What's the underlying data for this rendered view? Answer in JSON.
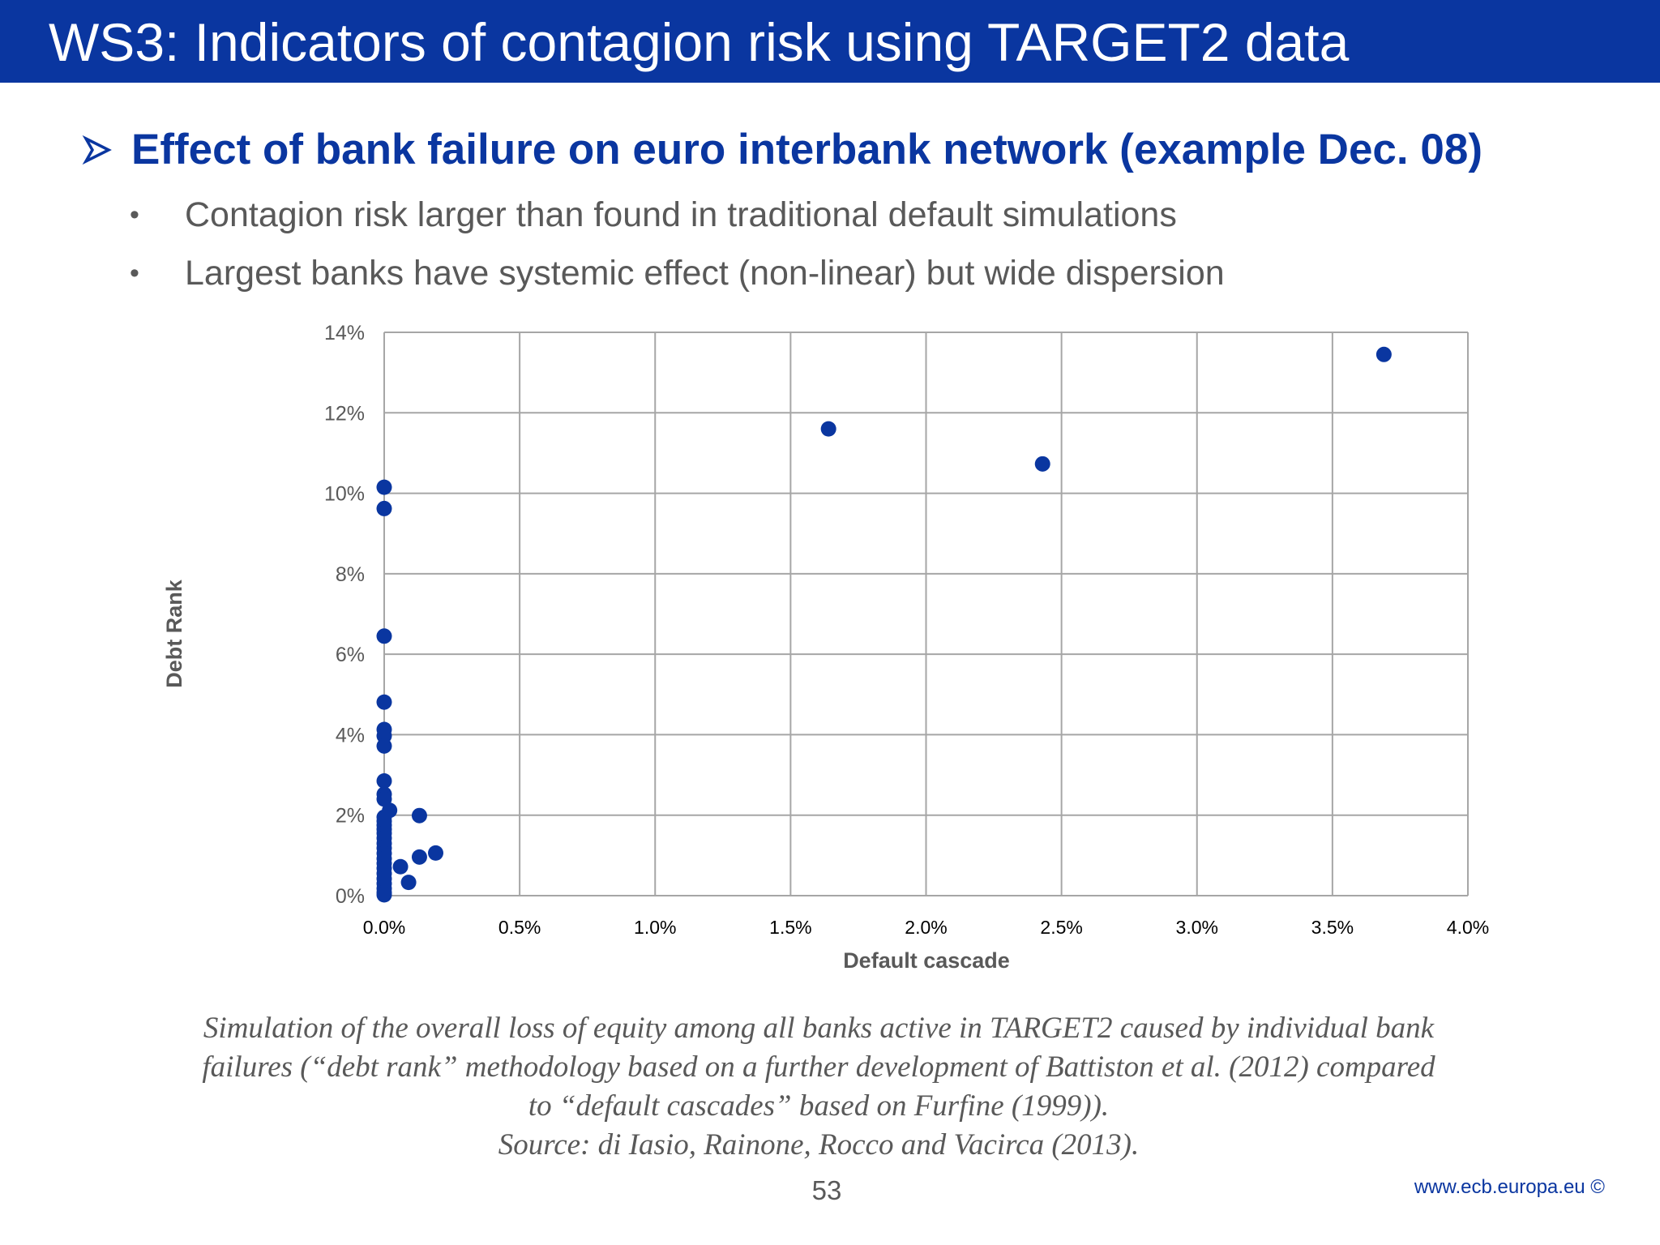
{
  "header": {
    "title": "WS3: Indicators of contagion risk using TARGET2 data"
  },
  "heading": {
    "text": "Effect of bank failure on euro interbank network (example Dec. 08)",
    "icon": "arrow-icon"
  },
  "bullets": [
    "Contagion risk larger than found in traditional default simulations",
    "Largest banks have systemic effect (non-linear) but wide dispersion"
  ],
  "chart_data": {
    "type": "scatter",
    "title": "",
    "xlabel": "Default cascade",
    "ylabel": "Debt Rank",
    "xlim": [
      0,
      0.04
    ],
    "ylim": [
      0,
      0.14
    ],
    "x_ticks": [
      "0.0%",
      "0.5%",
      "1.0%",
      "1.5%",
      "2.0%",
      "2.5%",
      "3.0%",
      "3.5%",
      "4.0%"
    ],
    "y_ticks": [
      "0%",
      "2%",
      "4%",
      "6%",
      "8%",
      "10%",
      "12%",
      "14%"
    ],
    "grid": true,
    "marker_color": "#0a36a0",
    "series": [
      {
        "points": [
          [
            0.0369,
            0.1345
          ],
          [
            0.0164,
            0.116
          ],
          [
            0.0243,
            0.1073
          ],
          [
            0.0,
            0.1015
          ],
          [
            0.0,
            0.0962
          ],
          [
            0.0,
            0.0645
          ],
          [
            0.0,
            0.0481
          ],
          [
            0.0,
            0.0413
          ],
          [
            0.0,
            0.0397
          ],
          [
            0.0,
            0.0372
          ],
          [
            0.0,
            0.0285
          ],
          [
            0.0,
            0.0252
          ],
          [
            0.0,
            0.024
          ],
          [
            0.0002,
            0.0212
          ],
          [
            0.0013,
            0.0199
          ],
          [
            0.0,
            0.0195
          ],
          [
            0.0,
            0.0185
          ],
          [
            0.0,
            0.0175
          ],
          [
            0.0,
            0.0165
          ],
          [
            0.0,
            0.0155
          ],
          [
            0.0,
            0.0143
          ],
          [
            0.0,
            0.013
          ],
          [
            0.0,
            0.0118
          ],
          [
            0.0,
            0.0105
          ],
          [
            0.0019,
            0.0106
          ],
          [
            0.0013,
            0.0096
          ],
          [
            0.0,
            0.0092
          ],
          [
            0.0,
            0.008
          ],
          [
            0.0006,
            0.0072
          ],
          [
            0.0,
            0.0068
          ],
          [
            0.0,
            0.0055
          ],
          [
            0.0,
            0.0042
          ],
          [
            0.0009,
            0.0033
          ],
          [
            0.0,
            0.003
          ],
          [
            0.0,
            0.0018
          ],
          [
            0.0,
            0.0008
          ],
          [
            0.0,
            0.0002
          ]
        ]
      }
    ]
  },
  "caption": [
    "Simulation of the overall loss of equity among all banks active in TARGET2 caused by individual bank",
    "failures (“debt rank” methodology based on a further development of Battiston et al. (2012) compared",
    "to “default cascades” based on Furfine (1999)).",
    "Source: di Iasio, Rainone, Rocco and Vacirca (2013)."
  ],
  "footer": {
    "page_number": "53",
    "url": "www.ecb.europa.eu ©"
  }
}
